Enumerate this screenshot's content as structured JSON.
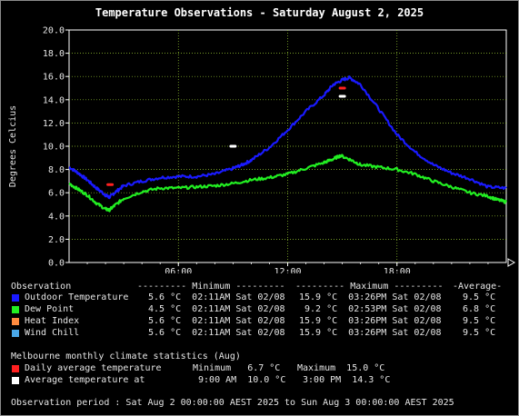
{
  "title": "Temperature Observations - Saturday August 2, 2025",
  "chart_data": {
    "type": "line",
    "ylabel": "Degrees Celcius",
    "xlabel": "",
    "ylim": [
      0,
      20
    ],
    "yticks": [
      "0.0",
      "2.0",
      "4.0",
      "6.0",
      "8.0",
      "10.0",
      "12.0",
      "14.0",
      "16.0",
      "18.0",
      "20.0"
    ],
    "xlim": [
      0,
      24
    ],
    "xticks": [
      {
        "label": "06:00",
        "h": 6
      },
      {
        "label": "12:00",
        "h": 12
      },
      {
        "label": "18:00",
        "h": 18
      }
    ],
    "grid": true,
    "series": [
      {
        "name": "Outdoor Temperature",
        "color": "#1a1aff",
        "x": [
          0,
          0.5,
          1,
          1.5,
          2,
          2.2,
          2.5,
          3,
          4,
          5,
          6,
          7,
          8,
          9,
          9.5,
          10,
          11,
          12,
          13,
          14,
          14.5,
          15,
          15.4,
          16,
          17,
          18,
          19,
          20,
          21,
          22,
          23,
          24
        ],
        "y": [
          8.2,
          7.7,
          7.1,
          6.4,
          5.8,
          5.6,
          6.0,
          6.6,
          7.0,
          7.3,
          7.4,
          7.4,
          7.6,
          8.1,
          8.4,
          8.8,
          9.9,
          11.4,
          13.0,
          14.4,
          15.3,
          15.7,
          15.9,
          15.3,
          13.2,
          11.0,
          9.5,
          8.4,
          7.7,
          7.2,
          6.5,
          6.4
        ]
      },
      {
        "name": "Dew Point",
        "color": "#22ee22",
        "x": [
          0,
          0.5,
          1,
          1.5,
          2,
          2.2,
          2.5,
          3,
          4,
          5,
          6,
          7,
          8,
          9,
          10,
          11,
          12,
          13,
          14,
          14.5,
          14.9,
          15.5,
          16,
          17,
          18,
          19,
          20,
          21,
          22,
          23,
          23.5,
          24
        ],
        "y": [
          6.8,
          6.3,
          5.8,
          5.1,
          4.6,
          4.5,
          4.9,
          5.5,
          6.1,
          6.4,
          6.4,
          6.5,
          6.6,
          6.8,
          7.1,
          7.3,
          7.6,
          8.1,
          8.6,
          8.9,
          9.2,
          8.8,
          8.4,
          8.2,
          8.0,
          7.6,
          7.0,
          6.5,
          6.0,
          5.7,
          5.4,
          5.2
        ]
      }
    ],
    "climate_points": [
      {
        "name": "Daily average temperature",
        "color": "#ff2020",
        "points": [
          {
            "x": 2.25,
            "y": 6.7
          },
          {
            "x": 15.0,
            "y": 15.0
          }
        ]
      },
      {
        "name": "Average temperature at",
        "color": "#ffffff",
        "points": [
          {
            "x": 9.0,
            "y": 10.0
          },
          {
            "x": 15.0,
            "y": 14.3
          }
        ]
      }
    ]
  },
  "legend": {
    "header_obs": "Observation",
    "header_min": "--------- Minimum ---------",
    "header_max": "--------- Maximum ---------",
    "header_avg": "-Average-",
    "rows": [
      {
        "label": "Outdoor Temperature",
        "color": "#1a1aff",
        "min": " 5.6 °C  02:11AM Sat 02/08",
        "max": "15.9 °C  03:26PM Sat 02/08",
        "avg": " 9.5 °C"
      },
      {
        "label": "Dew Point",
        "color": "#22ee22",
        "min": " 4.5 °C  02:11AM Sat 02/08",
        "max": " 9.2 °C  02:53PM Sat 02/08",
        "avg": " 6.8 °C"
      },
      {
        "label": "Heat Index",
        "color": "#ff8c40",
        "min": " 5.6 °C  02:11AM Sat 02/08",
        "max": "15.9 °C  03:26PM Sat 02/08",
        "avg": " 9.5 °C"
      },
      {
        "label": "Wind Chill",
        "color": "#4aa8e8",
        "min": " 5.6 °C  02:11AM Sat 02/08",
        "max": "15.9 °C  03:26PM Sat 02/08",
        "avg": " 9.5 °C"
      }
    ],
    "climate_header": "Melbourne monthly climate statistics (Aug)",
    "climate_rows": [
      {
        "label": "Daily average temperature",
        "color": "#ff2020",
        "min": "Minimum   6.7 °C",
        "max": "Maximum  15.0 °C"
      },
      {
        "label": "Average temperature at",
        "color": "#ffffff",
        "min": " 9:00 AM  10.0 °C",
        "max": " 3:00 PM  14.3 °C"
      }
    ],
    "period": "Observation period : Sat Aug 2 00:00:00 AEST 2025 to Sun Aug 3 00:00:00 AEST 2025"
  }
}
